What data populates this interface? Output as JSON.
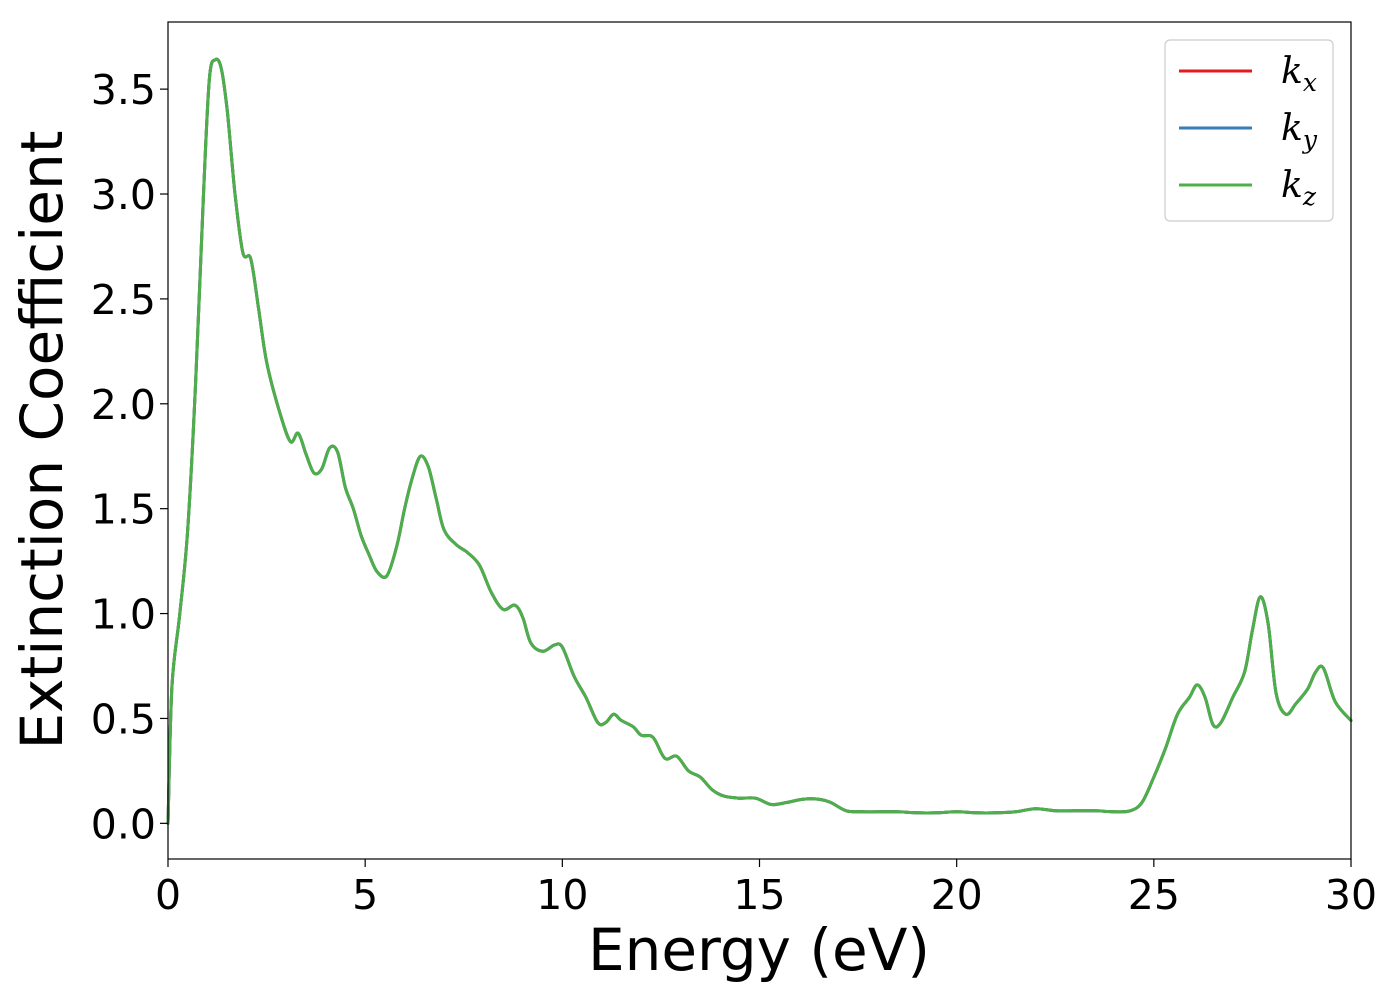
{
  "chart_data": {
    "type": "line",
    "title": "",
    "xlabel": "Energy (eV)",
    "ylabel": "Extinction Coefficient",
    "xlim": [
      0,
      30
    ],
    "ylim": [
      -0.17,
      3.82
    ],
    "xticks": [
      "0",
      "5",
      "10",
      "15",
      "20",
      "25",
      "30"
    ],
    "yticks": [
      "0.0",
      "0.5",
      "1.0",
      "1.5",
      "2.0",
      "2.5",
      "3.0",
      "3.5"
    ],
    "legend_position": "top-right",
    "grid": false,
    "x": [
      0,
      0.1,
      0.3,
      0.5,
      0.7,
      0.9,
      1.05,
      1.2,
      1.35,
      1.5,
      1.7,
      1.9,
      2.1,
      2.3,
      2.5,
      2.8,
      3.1,
      3.3,
      3.5,
      3.7,
      3.9,
      4.1,
      4.3,
      4.5,
      4.7,
      4.9,
      5.1,
      5.3,
      5.55,
      5.8,
      6.0,
      6.2,
      6.4,
      6.6,
      6.8,
      7.0,
      7.3,
      7.6,
      7.9,
      8.2,
      8.5,
      8.8,
      9.0,
      9.2,
      9.5,
      9.8,
      10.0,
      10.3,
      10.6,
      10.9,
      11.1,
      11.3,
      11.5,
      11.8,
      12.0,
      12.3,
      12.6,
      12.9,
      13.2,
      13.5,
      13.8,
      14.1,
      14.5,
      14.9,
      15.3,
      15.7,
      16.1,
      16.5,
      16.8,
      17.2,
      17.6,
      18.0,
      18.5,
      19.0,
      19.5,
      20.0,
      20.5,
      21.0,
      21.5,
      22.0,
      22.5,
      23.0,
      23.5,
      24.0,
      24.4,
      24.7,
      25.0,
      25.3,
      25.6,
      25.9,
      26.1,
      26.3,
      26.5,
      26.7,
      27.0,
      27.3,
      27.5,
      27.7,
      27.9,
      28.1,
      28.35,
      28.6,
      28.9,
      29.1,
      29.3,
      29.6,
      30.0
    ],
    "series": [
      {
        "name": "kx",
        "color": "#e41a1c",
        "values": [
          0.0,
          0.65,
          1.0,
          1.4,
          2.1,
          3.0,
          3.55,
          3.64,
          3.6,
          3.4,
          3.0,
          2.72,
          2.69,
          2.45,
          2.2,
          1.98,
          1.82,
          1.86,
          1.76,
          1.67,
          1.69,
          1.79,
          1.77,
          1.6,
          1.5,
          1.37,
          1.28,
          1.2,
          1.18,
          1.32,
          1.5,
          1.65,
          1.75,
          1.7,
          1.55,
          1.4,
          1.33,
          1.29,
          1.23,
          1.1,
          1.02,
          1.04,
          0.98,
          0.86,
          0.82,
          0.85,
          0.84,
          0.7,
          0.6,
          0.48,
          0.48,
          0.52,
          0.49,
          0.46,
          0.42,
          0.41,
          0.31,
          0.32,
          0.25,
          0.22,
          0.16,
          0.13,
          0.12,
          0.12,
          0.09,
          0.1,
          0.115,
          0.115,
          0.1,
          0.06,
          0.055,
          0.055,
          0.055,
          0.05,
          0.05,
          0.055,
          0.05,
          0.05,
          0.055,
          0.07,
          0.06,
          0.06,
          0.06,
          0.055,
          0.06,
          0.1,
          0.22,
          0.36,
          0.52,
          0.6,
          0.66,
          0.6,
          0.47,
          0.48,
          0.6,
          0.72,
          0.92,
          1.08,
          0.95,
          0.62,
          0.52,
          0.57,
          0.64,
          0.72,
          0.74,
          0.58,
          0.49
        ]
      },
      {
        "name": "ky",
        "color": "#377eb8",
        "values": [
          0.0,
          0.65,
          1.0,
          1.4,
          2.1,
          3.0,
          3.55,
          3.64,
          3.6,
          3.4,
          3.0,
          2.72,
          2.69,
          2.45,
          2.2,
          1.98,
          1.82,
          1.86,
          1.76,
          1.67,
          1.69,
          1.79,
          1.77,
          1.6,
          1.5,
          1.37,
          1.28,
          1.2,
          1.18,
          1.32,
          1.5,
          1.65,
          1.75,
          1.7,
          1.55,
          1.4,
          1.33,
          1.29,
          1.23,
          1.1,
          1.02,
          1.04,
          0.98,
          0.86,
          0.82,
          0.85,
          0.84,
          0.7,
          0.6,
          0.48,
          0.48,
          0.52,
          0.49,
          0.46,
          0.42,
          0.41,
          0.31,
          0.32,
          0.25,
          0.22,
          0.16,
          0.13,
          0.12,
          0.12,
          0.09,
          0.1,
          0.115,
          0.115,
          0.1,
          0.06,
          0.055,
          0.055,
          0.055,
          0.05,
          0.05,
          0.055,
          0.05,
          0.05,
          0.055,
          0.07,
          0.06,
          0.06,
          0.06,
          0.055,
          0.06,
          0.1,
          0.22,
          0.36,
          0.52,
          0.6,
          0.66,
          0.6,
          0.47,
          0.48,
          0.6,
          0.72,
          0.92,
          1.08,
          0.95,
          0.62,
          0.52,
          0.57,
          0.64,
          0.72,
          0.74,
          0.58,
          0.49
        ]
      },
      {
        "name": "kz",
        "color": "#4daf4a",
        "values": [
          0.0,
          0.65,
          1.0,
          1.4,
          2.1,
          3.0,
          3.55,
          3.64,
          3.6,
          3.4,
          3.0,
          2.72,
          2.69,
          2.45,
          2.2,
          1.98,
          1.82,
          1.86,
          1.76,
          1.67,
          1.69,
          1.79,
          1.77,
          1.6,
          1.5,
          1.37,
          1.28,
          1.2,
          1.18,
          1.32,
          1.5,
          1.65,
          1.75,
          1.7,
          1.55,
          1.4,
          1.33,
          1.29,
          1.23,
          1.1,
          1.02,
          1.04,
          0.98,
          0.86,
          0.82,
          0.85,
          0.84,
          0.7,
          0.6,
          0.48,
          0.48,
          0.52,
          0.49,
          0.46,
          0.42,
          0.41,
          0.31,
          0.32,
          0.25,
          0.22,
          0.16,
          0.13,
          0.12,
          0.12,
          0.09,
          0.1,
          0.115,
          0.115,
          0.1,
          0.06,
          0.055,
          0.055,
          0.055,
          0.05,
          0.05,
          0.055,
          0.05,
          0.05,
          0.055,
          0.07,
          0.06,
          0.06,
          0.06,
          0.055,
          0.06,
          0.1,
          0.22,
          0.36,
          0.52,
          0.6,
          0.66,
          0.6,
          0.47,
          0.48,
          0.6,
          0.72,
          0.92,
          1.08,
          0.95,
          0.62,
          0.52,
          0.57,
          0.64,
          0.72,
          0.74,
          0.58,
          0.49
        ]
      }
    ],
    "legend": [
      {
        "base": "k",
        "sub": "x",
        "color": "#e41a1c"
      },
      {
        "base": "k",
        "sub": "y",
        "color": "#377eb8"
      },
      {
        "base": "k",
        "sub": "z",
        "color": "#4daf4a"
      }
    ]
  }
}
